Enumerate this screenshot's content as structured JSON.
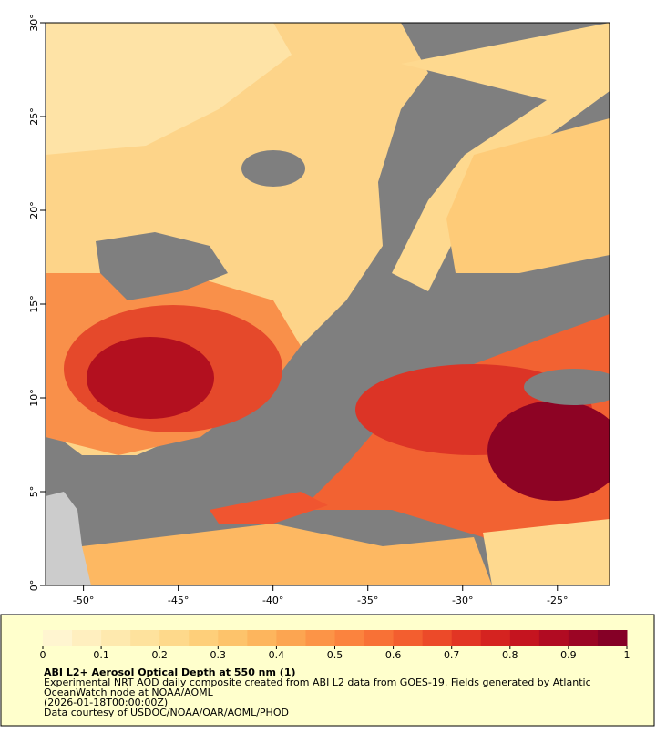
{
  "map": {
    "title": "ABI L2+ Aerosol Optical Depth at 550 nm (1)",
    "caption": [
      "Experimental NRT AOD daily composite created from ABI L2 data from GOES-19. Fields generated by Atlantic",
      "OceanWatch node at NOAA/AOML",
      "(2026-01-18T00:00:00Z)",
      "Data courtesy of USDOC/NOAA/OAR/AOML/PHOD"
    ],
    "xlim": [
      -52,
      -22.25
    ],
    "ylim": [
      0,
      30
    ],
    "xticks": [
      {
        "value": -50,
        "label": "-50°"
      },
      {
        "value": -45,
        "label": "-45°"
      },
      {
        "value": -40,
        "label": "-40°"
      },
      {
        "value": -35,
        "label": "-35°"
      },
      {
        "value": -30,
        "label": "-30°"
      },
      {
        "value": -25,
        "label": "-25°"
      }
    ],
    "yticks": [
      {
        "value": 0,
        "label": "0°"
      },
      {
        "value": 5,
        "label": "5°"
      },
      {
        "value": 10,
        "label": "10°"
      },
      {
        "value": 15,
        "label": "15°"
      },
      {
        "value": 20,
        "label": "20°"
      },
      {
        "value": 25,
        "label": "25°"
      },
      {
        "value": 30,
        "label": "30°"
      }
    ],
    "colorbar": {
      "lim": [
        0,
        1
      ],
      "ticks": [
        0,
        0.1,
        0.2,
        0.3,
        0.4,
        0.5,
        0.6,
        0.7,
        0.8,
        0.9,
        1
      ],
      "colors": [
        "#fff5d0",
        "#ffefbf",
        "#fee9ae",
        "#fee29d",
        "#fed98b",
        "#fecf7a",
        "#fdc36b",
        "#fdb55d",
        "#fca551",
        "#fc9447",
        "#fb833e",
        "#f87136",
        "#f35e2f",
        "#ec4a29",
        "#e23524",
        "#d52320",
        "#c5141f",
        "#b10b22",
        "#9b0524",
        "#850026"
      ]
    }
  }
}
